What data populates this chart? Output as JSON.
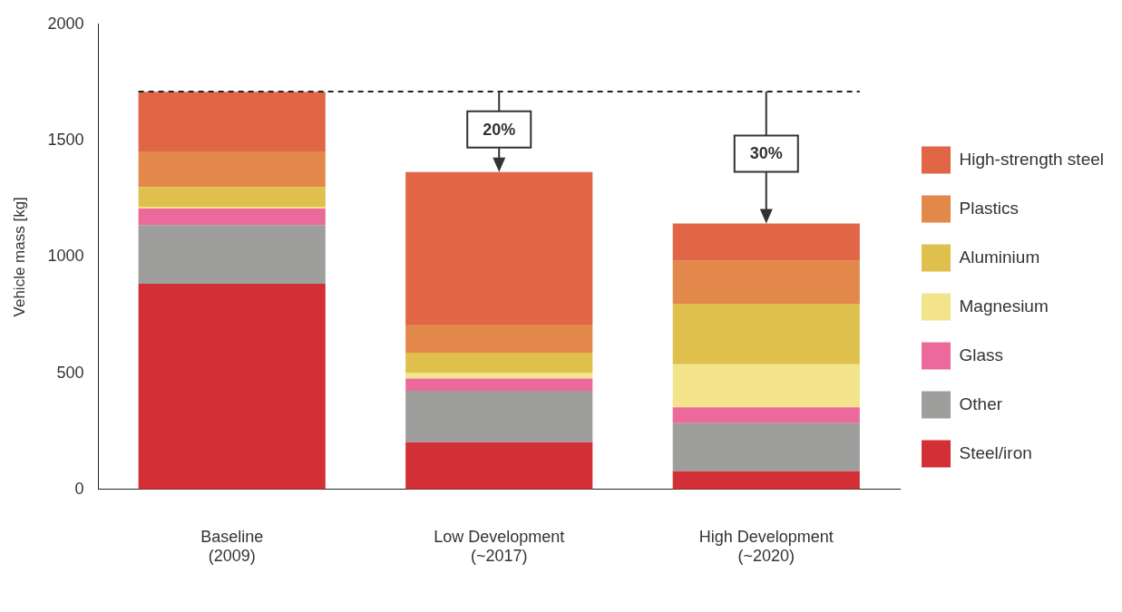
{
  "chart_data": {
    "type": "bar",
    "stacked": true,
    "ylabel": "Vehicle mass [kg]",
    "categories": [
      "Baseline\n(2009)",
      "Low Development\n(~2017)",
      "High Development\n(~2020)"
    ],
    "ylim": [
      0,
      2000
    ],
    "yticks": [
      0,
      500,
      1000,
      1500,
      2000
    ],
    "grid": false,
    "legend": "right",
    "series": [
      {
        "name": "Steel/iron",
        "color": "#d32f36",
        "values": [
          884,
          203,
          78
        ]
      },
      {
        "name": "Other",
        "color": "#9e9e9c",
        "values": [
          253,
          221,
          207
        ]
      },
      {
        "name": "Glass",
        "color": "#eb6a9b",
        "values": [
          71,
          53,
          68
        ]
      },
      {
        "name": "Magnesium",
        "color": "#f3e38a",
        "values": [
          8,
          25,
          185
        ]
      },
      {
        "name": "Aluminium",
        "color": "#dfc04c",
        "values": [
          84,
          86,
          260
        ]
      },
      {
        "name": "Plastics",
        "color": "#e2884a",
        "values": [
          153,
          121,
          185
        ]
      },
      {
        "name": "High-strength steel",
        "color": "#e06645",
        "values": [
          257,
          656,
          160
        ]
      }
    ],
    "ref_lines": [
      {
        "axis": "y",
        "value": 1711,
        "line_style": "dashed",
        "color": "#222222"
      }
    ],
    "annotations": [
      "20%",
      "30%"
    ]
  }
}
